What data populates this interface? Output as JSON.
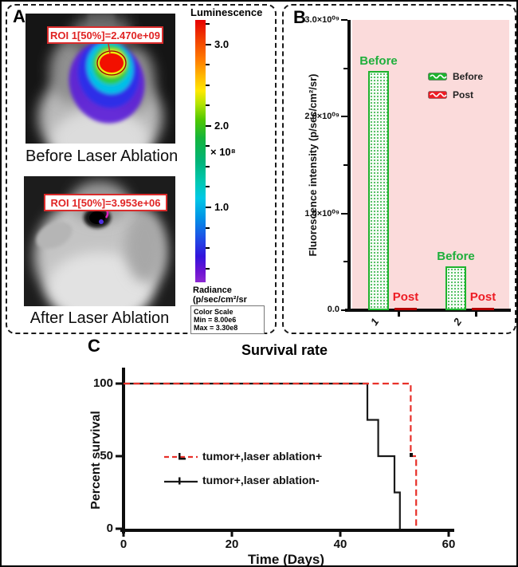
{
  "panelA": {
    "label": "A",
    "before": {
      "roi": "ROI 1[50%]=2.470e+09",
      "caption": "Before Laser Ablation"
    },
    "after": {
      "roi": "ROI 1[50%]=3.953e+06",
      "caption": "After Laser Ablation"
    },
    "colorbar": {
      "title": "Luminescence",
      "ticks": [
        {
          "label": "3.0",
          "value": 3.0
        },
        {
          "label": "2.0",
          "value": 2.0
        },
        {
          "label": "1.0",
          "value": 1.0
        }
      ],
      "max_value": 3.3,
      "min_value": 0.08,
      "multiplier": "× 10⁸",
      "unit_line1": "Radiance",
      "unit_line2": "(p/sec/cm²/sr",
      "scale_box": [
        "Color Scale",
        "Min = 8.00e6",
        "Max = 3.30e8"
      ]
    }
  },
  "panelB": {
    "label": "B"
  },
  "panelC": {
    "label": "C"
  },
  "colors": {
    "bar_green": "#1db32d",
    "label_green": "#1faf3c",
    "label_red": "#ed1c24",
    "post_bar_red": "#b30000",
    "plot_pink": "#fbdbdb",
    "survival_red": "#e8312a",
    "survival_black": "#1a1a1a",
    "roi_red": "#e02424"
  },
  "chart_data": [
    {
      "type": "bar",
      "categories": [
        "1",
        "2"
      ],
      "series": [
        {
          "name": "Before",
          "color": "#1db32d",
          "values": [
            2470000000.0,
            450000000.0
          ]
        },
        {
          "name": "Post",
          "color": "#ed1c24",
          "values": [
            20000000.0,
            20000000.0
          ]
        }
      ],
      "ylabel": "Fluorescence intensity (p/sec/cm²/sr)",
      "ylim": [
        0,
        3000000000.0
      ],
      "yticks": [
        {
          "label": "3.0×10⁰⁹",
          "value": 3000000000.0
        },
        {
          "label": "2.0×10⁰⁹",
          "value": 2000000000.0
        },
        {
          "label": "1.0×10⁰⁹",
          "value": 1000000000.0
        },
        {
          "label": "0.0",
          "value": 0
        }
      ],
      "legend": [
        {
          "label": "Before",
          "color": "#1db32d"
        },
        {
          "label": "Post",
          "color": "#ed1c24"
        }
      ],
      "legend_position": "upper-right",
      "grid": false,
      "plot_bg": "#fbdbdb"
    },
    {
      "type": "line",
      "title": "Survival rate",
      "xlabel": "Time (Days)",
      "ylabel": "Percent survival",
      "xlim": [
        0,
        60
      ],
      "ylim": [
        0,
        100
      ],
      "xticks": [
        0,
        20,
        40,
        60
      ],
      "yticks": [
        100,
        50,
        0
      ],
      "grid": false,
      "legend_position": "center-left",
      "series": [
        {
          "name": "tumor+,laser ablation+",
          "style": "dashed",
          "color": "#e8312a",
          "x": [
            0,
            53,
            53,
            54,
            54
          ],
          "y": [
            100,
            100,
            50,
            50,
            0
          ]
        },
        {
          "name": "tumor+,laser ablation-",
          "style": "solid",
          "color": "#1a1a1a",
          "x": [
            0,
            45,
            45,
            47,
            47,
            50,
            50,
            51,
            51
          ],
          "y": [
            100,
            100,
            75,
            75,
            50,
            50,
            25,
            25,
            0
          ]
        }
      ]
    }
  ]
}
